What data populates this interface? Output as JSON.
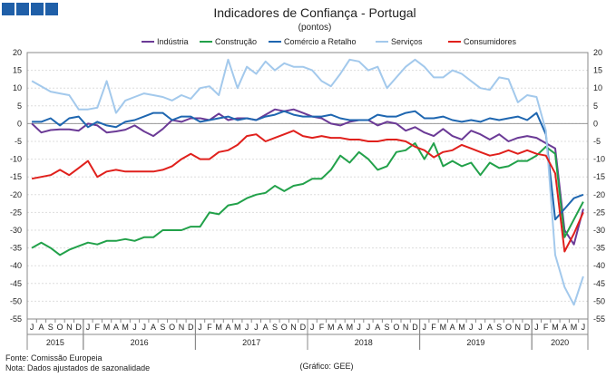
{
  "logo_boxes": 4,
  "chart_data": {
    "type": "line",
    "title": "Indicadores de Confiança - Portugal",
    "subtitle": "(pontos)",
    "ylim": [
      -55,
      20
    ],
    "yticks": [
      20,
      15,
      10,
      5,
      0,
      -5,
      -10,
      -15,
      -20,
      -25,
      -30,
      -35,
      -40,
      -45,
      -50,
      -55
    ],
    "grid": true,
    "legend_position": "top",
    "month_labels": [
      "J",
      "A",
      "S",
      "O",
      "N",
      "D",
      "J",
      "F",
      "M",
      "A",
      "M",
      "J",
      "J",
      "A",
      "S",
      "O",
      "N",
      "D",
      "J",
      "F",
      "M",
      "A",
      "M",
      "J",
      "J",
      "A",
      "S",
      "O",
      "N",
      "D",
      "J",
      "F",
      "M",
      "A",
      "M",
      "J",
      "J",
      "A",
      "S",
      "O",
      "N",
      "D",
      "J",
      "F",
      "M",
      "A",
      "M",
      "J",
      "J",
      "A",
      "S",
      "O",
      "N",
      "D",
      "J",
      "F",
      "M",
      "A",
      "M",
      "J"
    ],
    "years": [
      {
        "label": "2015",
        "start": 0,
        "count": 6
      },
      {
        "label": "2016",
        "start": 6,
        "count": 12
      },
      {
        "label": "2017",
        "start": 18,
        "count": 12
      },
      {
        "label": "2018",
        "start": 30,
        "count": 12
      },
      {
        "label": "2019",
        "start": 42,
        "count": 12
      },
      {
        "label": "2020",
        "start": 54,
        "count": 6
      }
    ],
    "series": [
      {
        "name": "Indústria",
        "color": "#6b3a96",
        "values": [
          0,
          -2.5,
          -1.8,
          -1.6,
          -1.6,
          -2,
          0,
          -0.5,
          -2.5,
          -2.2,
          -1.7,
          -0.5,
          -2.2,
          -3.5,
          -1.5,
          1,
          0.5,
          1.5,
          1.5,
          1,
          2.8,
          1,
          1.5,
          1.5,
          1,
          2.5,
          4,
          3.5,
          4,
          3,
          2,
          1.5,
          0,
          -0.5,
          0.5,
          1,
          1,
          -0.5,
          0.5,
          0,
          -2,
          -1,
          -2.5,
          -3.5,
          -1.5,
          -3.5,
          -4.5,
          -2,
          -3,
          -4.5,
          -3,
          -5,
          -4,
          -3.5,
          -4,
          -5.5,
          -7,
          -30,
          -34,
          -24
        ]
      },
      {
        "name": "Construção",
        "color": "#22a14a",
        "values": [
          -35,
          -33.5,
          -35,
          -37,
          -35.5,
          -34.5,
          -33.5,
          -34,
          -33,
          -33,
          -32.5,
          -33,
          -32,
          -32,
          -30,
          -30,
          -30,
          -29,
          -29,
          -25,
          -25.5,
          -23,
          -22.5,
          -21,
          -20,
          -19.5,
          -17.5,
          -19,
          -17.5,
          -17,
          -15.5,
          -15.5,
          -13,
          -9,
          -11,
          -8,
          -10,
          -13,
          -12,
          -8,
          -7.5,
          -5.5,
          -10,
          -5.5,
          -12,
          -10.5,
          -12,
          -11,
          -14.5,
          -11,
          -12.5,
          -12,
          -10.5,
          -10.5,
          -9,
          -6.5,
          -8.5,
          -32,
          -27,
          -22
        ]
      },
      {
        "name": "Comércio a Retalho",
        "color": "#1e66b0",
        "values": [
          0.5,
          0.5,
          1.5,
          -0.5,
          1.5,
          2,
          -1,
          0.5,
          -0.5,
          -1,
          0.5,
          1,
          2,
          3,
          3,
          1,
          2,
          2,
          0.5,
          1,
          1.5,
          2,
          1,
          1.5,
          1,
          2,
          2.5,
          3.5,
          2.5,
          2,
          2,
          2,
          2.5,
          1.5,
          1,
          1,
          1,
          2.5,
          2,
          2,
          3,
          3.5,
          1.5,
          1.5,
          2,
          1,
          0.5,
          1,
          0.5,
          1.5,
          1,
          1.5,
          2,
          1,
          3,
          -3,
          -27,
          -24,
          -21,
          -20
        ]
      },
      {
        "name": "Serviços",
        "color": "#a3c9ec",
        "values": [
          12,
          10.5,
          9,
          8.5,
          8,
          4,
          4,
          4.5,
          12,
          3,
          6.5,
          7.5,
          8.5,
          8,
          7.5,
          6.5,
          8,
          7,
          10,
          10.5,
          8,
          18,
          10,
          16,
          14,
          17.5,
          15,
          17,
          16,
          16,
          15,
          12,
          10.5,
          14,
          18,
          17.5,
          15,
          16,
          10,
          13,
          16,
          18,
          16,
          13,
          13,
          15,
          14,
          12,
          10,
          9.5,
          13,
          12.5,
          6,
          8,
          7.5,
          -2,
          -37,
          -46,
          -51,
          -43
        ]
      },
      {
        "name": "Consumidores",
        "color": "#e0201c",
        "values": [
          -15.5,
          -15,
          -14.5,
          -13,
          -14.5,
          -12.5,
          -10.5,
          -15,
          -13.5,
          -13,
          -13.5,
          -13.5,
          -13.5,
          -13.5,
          -13,
          -12,
          -10,
          -8.5,
          -10,
          -10,
          -8,
          -7.5,
          -6,
          -3.5,
          -3,
          -5,
          -4,
          -3,
          -2,
          -3.5,
          -4,
          -3.5,
          -4,
          -4,
          -4.5,
          -4.5,
          -5,
          -5,
          -4.5,
          -4.5,
          -5,
          -6.5,
          -7.5,
          -9.5,
          -8,
          -7.5,
          -6,
          -7,
          -8,
          -9,
          -8.5,
          -7.5,
          -8.5,
          -7.5,
          -8.5,
          -9,
          -14,
          -36,
          -31,
          -25
        ]
      }
    ]
  },
  "footer": {
    "source": "Fonte: Comissão Europeia",
    "note": "Nota: Dados ajustados de sazonalidade",
    "credit": "(Gráfico: GEE)"
  }
}
